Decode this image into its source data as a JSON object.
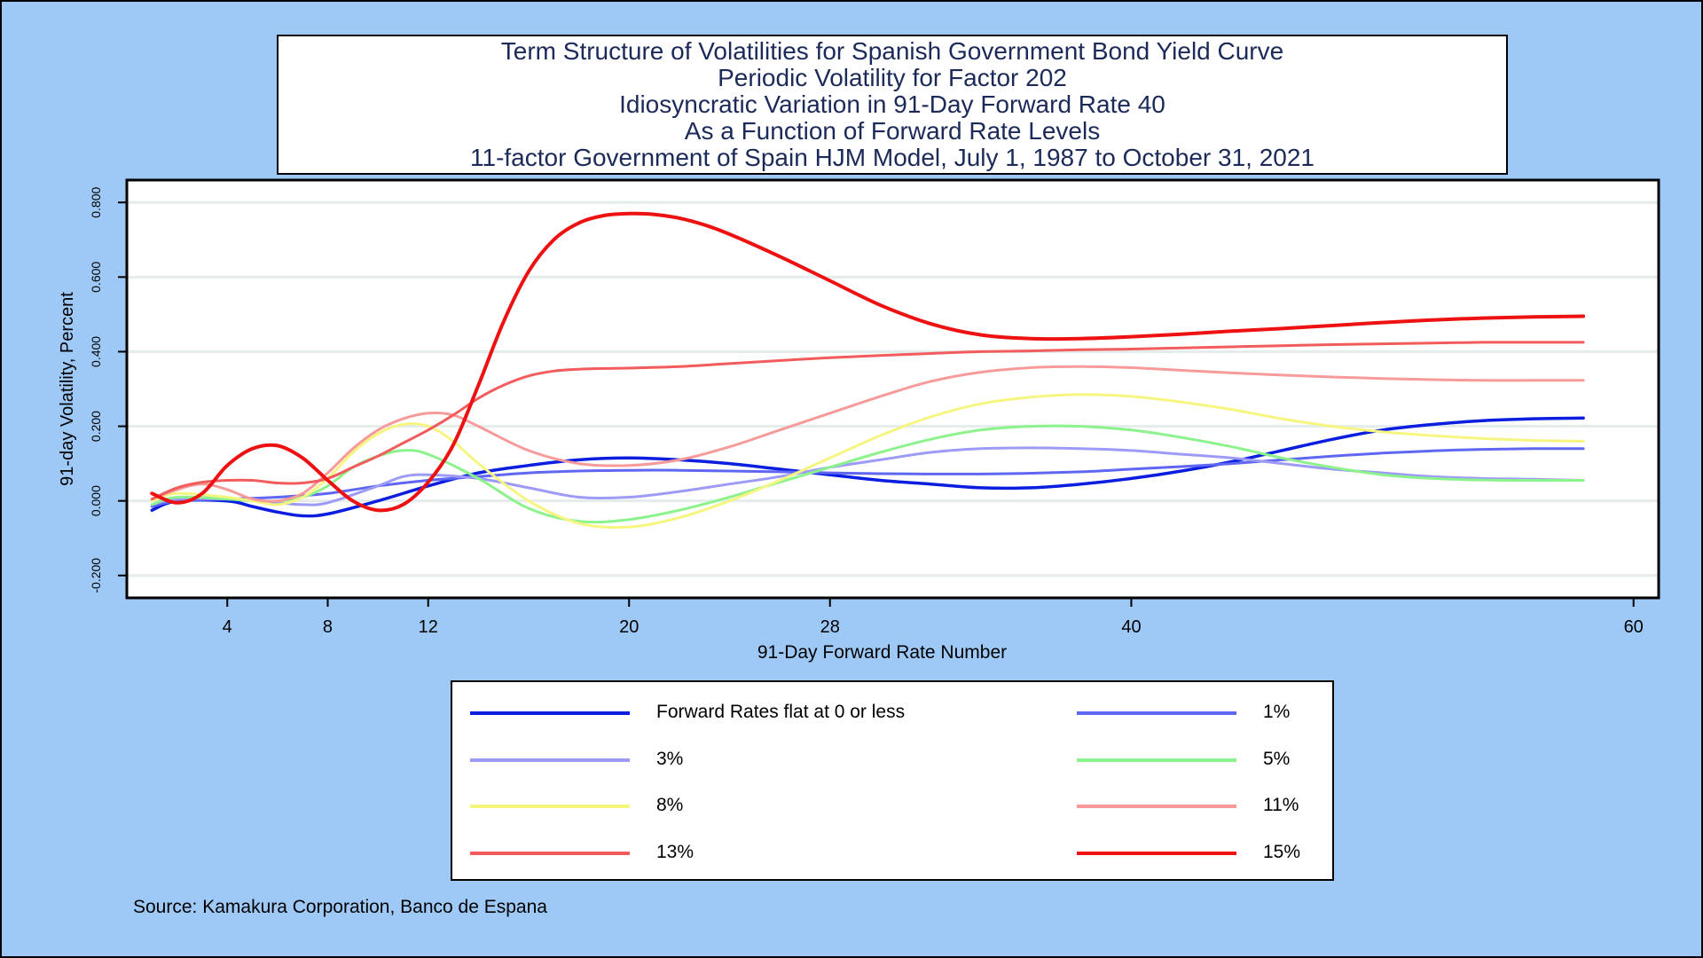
{
  "title_lines": [
    "Term Structure of Volatilities for Spanish Government Bond Yield Curve",
    "Periodic Volatility for Factor 202",
    "Idiosyncratic Variation in 91-Day Forward Rate 40",
    "As a Function of Forward Rate Levels",
    "11-factor Government of Spain HJM Model, July 1, 1987 to October 31, 2021"
  ],
  "source": "Source: Kamakura Corporation, Banco de Espana",
  "colors": {
    "background": "#9ec9f7",
    "plot_background": "#ffffff",
    "gridline": "#e4ecec"
  },
  "chart_data": {
    "type": "line",
    "xlabel": "91-Day Forward Rate Number",
    "ylabel": "91-day Volatility, Percent",
    "xlim": [
      0,
      61
    ],
    "ylim": [
      -0.26,
      0.86
    ],
    "x_ticks": [
      4,
      8,
      12,
      20,
      28,
      40,
      60
    ],
    "y_ticks": [
      -0.2,
      0.0,
      0.2,
      0.4,
      0.6,
      0.8
    ],
    "y_tick_labels": [
      "-0.200",
      "0.000",
      "0.200",
      "0.400",
      "0.600",
      "0.800"
    ],
    "grid": true,
    "legend_position": "bottom",
    "series": [
      {
        "name": "Forward Rates flat at 0 or less",
        "color": "#0b1ee0",
        "width": 3.5,
        "x": [
          1,
          2,
          4,
          5,
          6,
          7,
          8,
          10,
          12,
          14,
          16,
          18,
          20,
          22,
          24,
          26,
          28,
          30,
          32,
          34,
          36,
          38,
          40,
          42,
          44,
          46,
          48,
          50,
          52,
          54,
          56,
          58
        ],
        "y": [
          -0.025,
          0.0,
          0.0,
          -0.015,
          -0.03,
          -0.04,
          -0.035,
          0.0,
          0.04,
          0.075,
          0.095,
          0.11,
          0.115,
          0.11,
          0.1,
          0.085,
          0.07,
          0.055,
          0.045,
          0.035,
          0.035,
          0.045,
          0.06,
          0.08,
          0.105,
          0.135,
          0.165,
          0.19,
          0.205,
          0.215,
          0.22,
          0.222
        ]
      },
      {
        "name": "1%",
        "color": "#5f66f2",
        "width": 3,
        "x": [
          1,
          2,
          4,
          6,
          8,
          10,
          12,
          14,
          16,
          18,
          20,
          22,
          24,
          26,
          28,
          30,
          32,
          34,
          36,
          38,
          40,
          42,
          44,
          46,
          48,
          50,
          52,
          54,
          56,
          58
        ],
        "y": [
          -0.015,
          0.0,
          0.005,
          0.01,
          0.02,
          0.04,
          0.055,
          0.065,
          0.075,
          0.08,
          0.082,
          0.082,
          0.08,
          0.078,
          0.075,
          0.073,
          0.072,
          0.072,
          0.074,
          0.078,
          0.085,
          0.092,
          0.1,
          0.11,
          0.12,
          0.128,
          0.134,
          0.138,
          0.14,
          0.14
        ]
      },
      {
        "name": "3%",
        "color": "#9d9bf7",
        "width": 3,
        "x": [
          1,
          2,
          4,
          5,
          6,
          7,
          8,
          10,
          11,
          12,
          14,
          16,
          18,
          20,
          22,
          24,
          26,
          28,
          30,
          32,
          34,
          36,
          38,
          40,
          42,
          44,
          46,
          48,
          50,
          52,
          54,
          56,
          58
        ],
        "y": [
          -0.01,
          0.005,
          0.005,
          0.0,
          -0.005,
          -0.01,
          -0.005,
          0.04,
          0.065,
          0.07,
          0.06,
          0.035,
          0.01,
          0.01,
          0.025,
          0.045,
          0.065,
          0.09,
          0.11,
          0.13,
          0.14,
          0.142,
          0.14,
          0.135,
          0.125,
          0.115,
          0.1,
          0.085,
          0.075,
          0.065,
          0.06,
          0.058,
          0.055
        ]
      },
      {
        "name": "5%",
        "color": "#8cf28c",
        "width": 3,
        "x": [
          1,
          2,
          4,
          5,
          6,
          7,
          8,
          9,
          10,
          11,
          12,
          14,
          16,
          18,
          20,
          22,
          24,
          26,
          28,
          30,
          32,
          34,
          36,
          38,
          40,
          42,
          44,
          46,
          48,
          50,
          52,
          54,
          56,
          58
        ],
        "y": [
          -0.01,
          0.01,
          0.005,
          0.0,
          0.0,
          0.01,
          0.04,
          0.09,
          0.12,
          0.135,
          0.125,
          0.06,
          -0.02,
          -0.055,
          -0.05,
          -0.025,
          0.01,
          0.05,
          0.09,
          0.13,
          0.165,
          0.19,
          0.2,
          0.2,
          0.19,
          0.17,
          0.145,
          0.115,
          0.09,
          0.07,
          0.06,
          0.056,
          0.055,
          0.055
        ]
      },
      {
        "name": "8%",
        "color": "#f5f580",
        "width": 3,
        "x": [
          1,
          2,
          4,
          5,
          6,
          7,
          8,
          9,
          10,
          11,
          12,
          13,
          14,
          16,
          18,
          20,
          22,
          24,
          26,
          28,
          30,
          32,
          34,
          36,
          38,
          40,
          42,
          44,
          46,
          48,
          50,
          52,
          54,
          56,
          58
        ],
        "y": [
          0.0,
          0.02,
          0.01,
          0.0,
          -0.01,
          0.01,
          0.06,
          0.13,
          0.18,
          0.205,
          0.2,
          0.16,
          0.1,
          0.0,
          -0.06,
          -0.07,
          -0.045,
          0.0,
          0.055,
          0.115,
          0.175,
          0.225,
          0.26,
          0.278,
          0.285,
          0.28,
          0.265,
          0.245,
          0.22,
          0.2,
          0.185,
          0.175,
          0.167,
          0.162,
          0.16
        ]
      },
      {
        "name": "11%",
        "color": "#f79a9a",
        "width": 3,
        "x": [
          1,
          2,
          3,
          4,
          5,
          6,
          7,
          8,
          9,
          10,
          11,
          12,
          13,
          14,
          16,
          18,
          20,
          22,
          24,
          26,
          28,
          30,
          32,
          34,
          36,
          38,
          40,
          42,
          44,
          46,
          48,
          50,
          52,
          54,
          56,
          58
        ],
        "y": [
          0.005,
          0.03,
          0.045,
          0.03,
          0.005,
          0.0,
          0.02,
          0.075,
          0.14,
          0.19,
          0.22,
          0.235,
          0.23,
          0.2,
          0.135,
          0.1,
          0.095,
          0.11,
          0.145,
          0.19,
          0.235,
          0.28,
          0.32,
          0.345,
          0.357,
          0.36,
          0.357,
          0.35,
          0.343,
          0.337,
          0.332,
          0.328,
          0.325,
          0.323,
          0.323,
          0.323
        ]
      },
      {
        "name": "13%",
        "color": "#f25c5c",
        "width": 3,
        "x": [
          1,
          2,
          3,
          4,
          5,
          6,
          7,
          8,
          9,
          10,
          11,
          12,
          13,
          14,
          15,
          16,
          17,
          18,
          19,
          20,
          22,
          24,
          26,
          28,
          30,
          32,
          34,
          36,
          38,
          40,
          42,
          44,
          46,
          48,
          50,
          52,
          54,
          56,
          58
        ],
        "y": [
          0.005,
          0.035,
          0.05,
          0.055,
          0.055,
          0.048,
          0.048,
          0.06,
          0.09,
          0.12,
          0.155,
          0.19,
          0.23,
          0.275,
          0.31,
          0.335,
          0.348,
          0.353,
          0.355,
          0.356,
          0.36,
          0.368,
          0.376,
          0.384,
          0.39,
          0.395,
          0.4,
          0.402,
          0.405,
          0.407,
          0.41,
          0.413,
          0.416,
          0.419,
          0.421,
          0.423,
          0.425,
          0.425,
          0.425
        ]
      },
      {
        "name": "15%",
        "color": "#ee1111",
        "width": 4,
        "x": [
          1,
          2,
          3,
          4,
          5,
          6,
          7,
          8,
          9,
          10,
          11,
          12,
          13,
          14,
          15,
          16,
          17,
          18,
          19,
          20,
          21,
          22,
          23,
          24,
          26,
          28,
          30,
          32,
          34,
          36,
          38,
          40,
          42,
          44,
          46,
          48,
          50,
          52,
          54,
          56,
          58
        ],
        "y": [
          0.02,
          -0.005,
          0.02,
          0.095,
          0.14,
          0.148,
          0.115,
          0.055,
          0.0,
          -0.025,
          -0.01,
          0.05,
          0.15,
          0.31,
          0.48,
          0.615,
          0.7,
          0.745,
          0.765,
          0.77,
          0.768,
          0.758,
          0.74,
          0.715,
          0.655,
          0.59,
          0.525,
          0.475,
          0.445,
          0.435,
          0.435,
          0.44,
          0.447,
          0.455,
          0.462,
          0.47,
          0.478,
          0.485,
          0.49,
          0.493,
          0.495
        ]
      }
    ]
  }
}
